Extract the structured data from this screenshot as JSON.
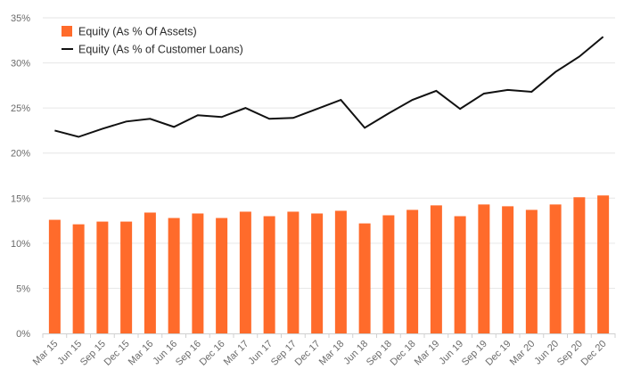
{
  "chart_data": {
    "type": "bar+line",
    "title": "",
    "xlabel": "",
    "ylabel": "",
    "ylim": [
      0,
      35
    ],
    "y_ticks": [
      "0%",
      "5%",
      "10%",
      "15%",
      "20%",
      "25%",
      "30%",
      "35%"
    ],
    "y_tick_values": [
      0,
      5,
      10,
      15,
      20,
      25,
      30,
      35
    ],
    "grid": "horizontal",
    "legend_position": "top-left",
    "categories": [
      "Mar 15",
      "Jun 15",
      "Sep 15",
      "Dec 15",
      "Mar 16",
      "Jun 16",
      "Sep 16",
      "Dec 16",
      "Mar 17",
      "Jun 17",
      "Sep 17",
      "Dec 17",
      "Mar 18",
      "Jun 18",
      "Sep 18",
      "Dec 18",
      "Mar 19",
      "Jun 19",
      "Sep 19",
      "Dec 19",
      "Mar 20",
      "Jun 20",
      "Sep 20",
      "Dec 20"
    ],
    "series": [
      {
        "name": "Equity (As % Of Assets)",
        "type": "bar",
        "color": "#ff6b2b",
        "values": [
          12.6,
          12.1,
          12.4,
          12.4,
          13.4,
          12.8,
          13.3,
          12.8,
          13.5,
          13.0,
          13.5,
          13.3,
          13.6,
          12.2,
          13.1,
          13.7,
          14.2,
          13.0,
          14.3,
          14.1,
          13.7,
          14.3,
          15.1,
          15.3
        ]
      },
      {
        "name": "Equity (As % of Customer Loans)",
        "type": "line",
        "color": "#111111",
        "values": [
          22.5,
          21.8,
          22.7,
          23.5,
          23.8,
          22.9,
          24.2,
          24.0,
          25.0,
          23.8,
          23.9,
          24.9,
          25.9,
          22.8,
          24.4,
          25.9,
          26.9,
          24.9,
          26.6,
          27.0,
          26.8,
          29.0,
          30.7,
          32.9
        ]
      }
    ]
  },
  "colors": {
    "gridline": "#e6e6e6",
    "axis": "#d0d0d0",
    "tick_text": "#6b6b6b"
  }
}
